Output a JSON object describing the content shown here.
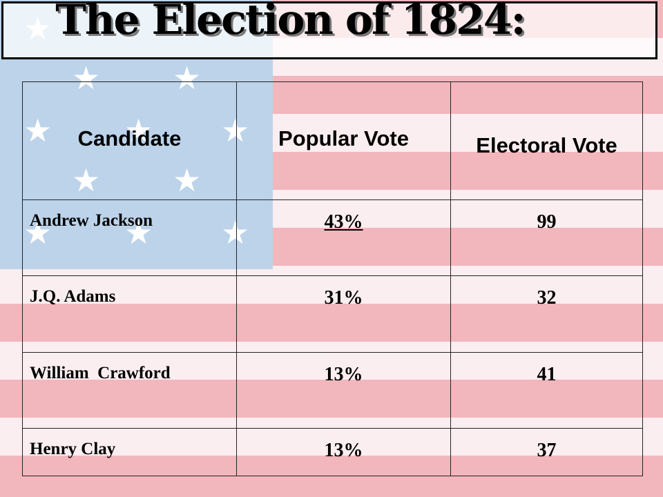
{
  "title": "The Election of 1824:",
  "table": {
    "headers": [
      "Candidate",
      "Popular Vote",
      "Electoral Vote"
    ],
    "rows": [
      {
        "candidate": "Andrew Jackson",
        "popular": "43%",
        "electoral": "99"
      },
      {
        "candidate": "J.Q. Adams",
        "popular": "31%",
        "electoral": "32"
      },
      {
        "candidate": "William  Crawford",
        "popular": "13%",
        "electoral": "41"
      },
      {
        "candidate": "Henry Clay",
        "popular": "13%",
        "electoral": "37"
      }
    ]
  },
  "colors": {
    "stripe_red": "#f2b6bd",
    "stripe_white": "#fbeef0",
    "canton_blue": "#bcd3ea",
    "star": "#ffffff"
  },
  "icons": [
    "star-icon"
  ]
}
